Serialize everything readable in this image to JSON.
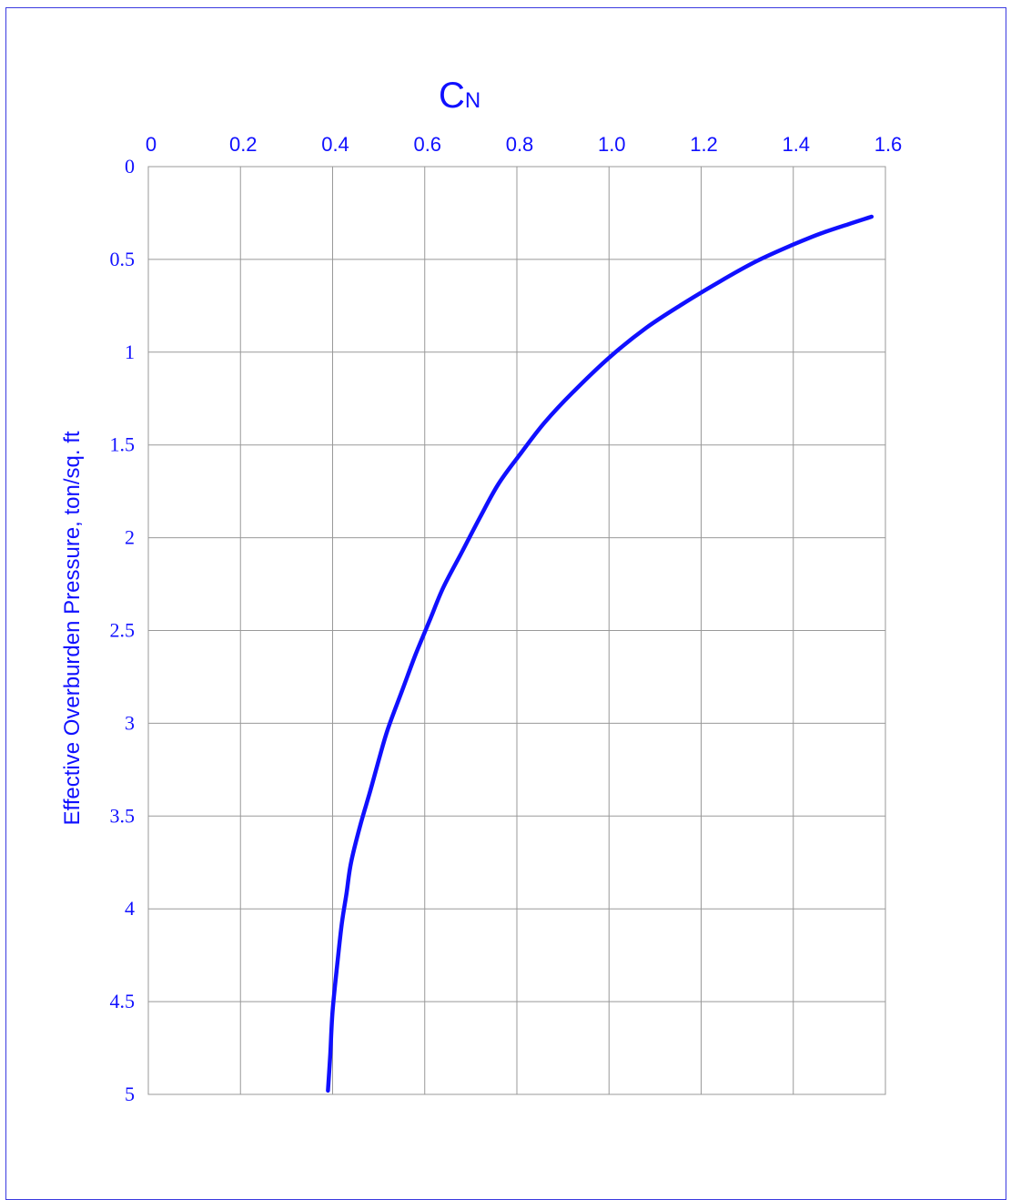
{
  "chart_data": {
    "type": "line",
    "title": "",
    "xlabel": "C",
    "xlabel_subscript": "N",
    "ylabel": "Effective Overburden Pressure, ton/sq. ft",
    "x_axis_position": "top",
    "y_axis_inverted": true,
    "xlim": [
      0,
      1.6
    ],
    "ylim": [
      0,
      5
    ],
    "x_ticks": [
      0,
      0.2,
      0.4,
      0.6,
      0.8,
      1.0,
      1.2,
      1.4,
      1.6
    ],
    "x_tick_labels": [
      "0",
      "0.2",
      "0.4",
      "0.6",
      "0.8",
      "1.0",
      "1.2",
      "1.4",
      "1.6"
    ],
    "y_ticks": [
      0,
      0.5,
      1,
      1.5,
      2,
      2.5,
      3,
      3.5,
      4,
      4.5,
      5
    ],
    "y_tick_labels": [
      "0",
      "0.5",
      "1",
      "1.5",
      "2",
      "2.5",
      "3",
      "3.5",
      "4",
      "4.5",
      "5"
    ],
    "grid": true,
    "color": "#1010ff",
    "grid_color": "#999999",
    "series": [
      {
        "name": "",
        "x": [
          1.57,
          1.52,
          1.46,
          1.4,
          1.32,
          1.24,
          1.16,
          1.08,
          1.0,
          0.92,
          0.86,
          0.81,
          0.76,
          0.72,
          0.68,
          0.64,
          0.61,
          0.58,
          0.55,
          0.52,
          0.5,
          0.48,
          0.46,
          0.44,
          0.43,
          0.42,
          0.41,
          0.4,
          0.395,
          0.39
        ],
        "y": [
          0.27,
          0.31,
          0.36,
          0.42,
          0.51,
          0.62,
          0.74,
          0.87,
          1.03,
          1.22,
          1.38,
          1.54,
          1.71,
          1.89,
          2.08,
          2.27,
          2.45,
          2.63,
          2.83,
          3.03,
          3.2,
          3.38,
          3.55,
          3.75,
          3.92,
          4.08,
          4.3,
          4.55,
          4.78,
          4.98
        ]
      }
    ]
  }
}
